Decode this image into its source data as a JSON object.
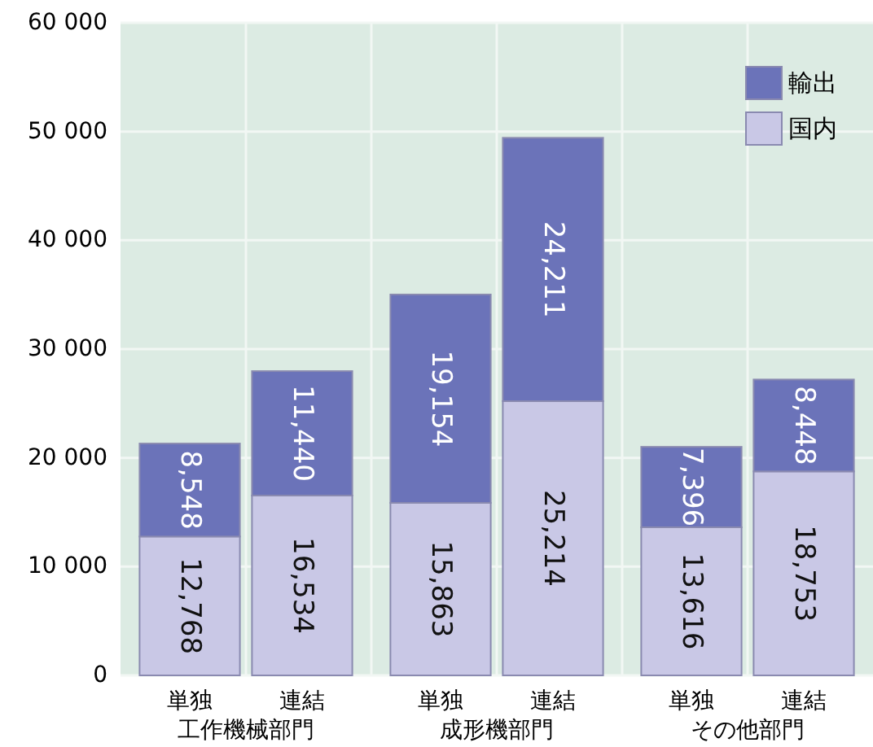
{
  "chart_data": {
    "type": "bar",
    "stacked": true,
    "categories": [
      "単独",
      "連結",
      "単独",
      "連結",
      "単独",
      "連結"
    ],
    "annotations": [
      "工作機械部門",
      "成形機部門",
      "その他部門"
    ],
    "series": [
      {
        "name": "国内",
        "color": "#c9c8e6",
        "values": [
          12768,
          16534,
          15863,
          25214,
          13616,
          18753
        ],
        "value_labels": [
          "12,768",
          "16,534",
          "15,863",
          "25,214",
          "13,616",
          "18,753"
        ]
      },
      {
        "name": "輸出",
        "color": "#6b73b9",
        "values": [
          8548,
          11440,
          19154,
          24211,
          7396,
          8448
        ],
        "value_labels": [
          "8,548",
          "11,440",
          "19,154",
          "24,211",
          "7,396",
          "8,448"
        ]
      }
    ],
    "ylim": [
      0,
      60000
    ],
    "yticks": [
      {
        "value": 0,
        "label": "0"
      },
      {
        "value": 10000,
        "label": "10 000"
      },
      {
        "value": 20000,
        "label": "20 000"
      },
      {
        "value": 30000,
        "label": "30 000"
      },
      {
        "value": 40000,
        "label": "40 000"
      },
      {
        "value": 50000,
        "label": "50 000"
      },
      {
        "value": 60000,
        "label": "60 000"
      }
    ],
    "grid": true,
    "legend": "top right"
  }
}
